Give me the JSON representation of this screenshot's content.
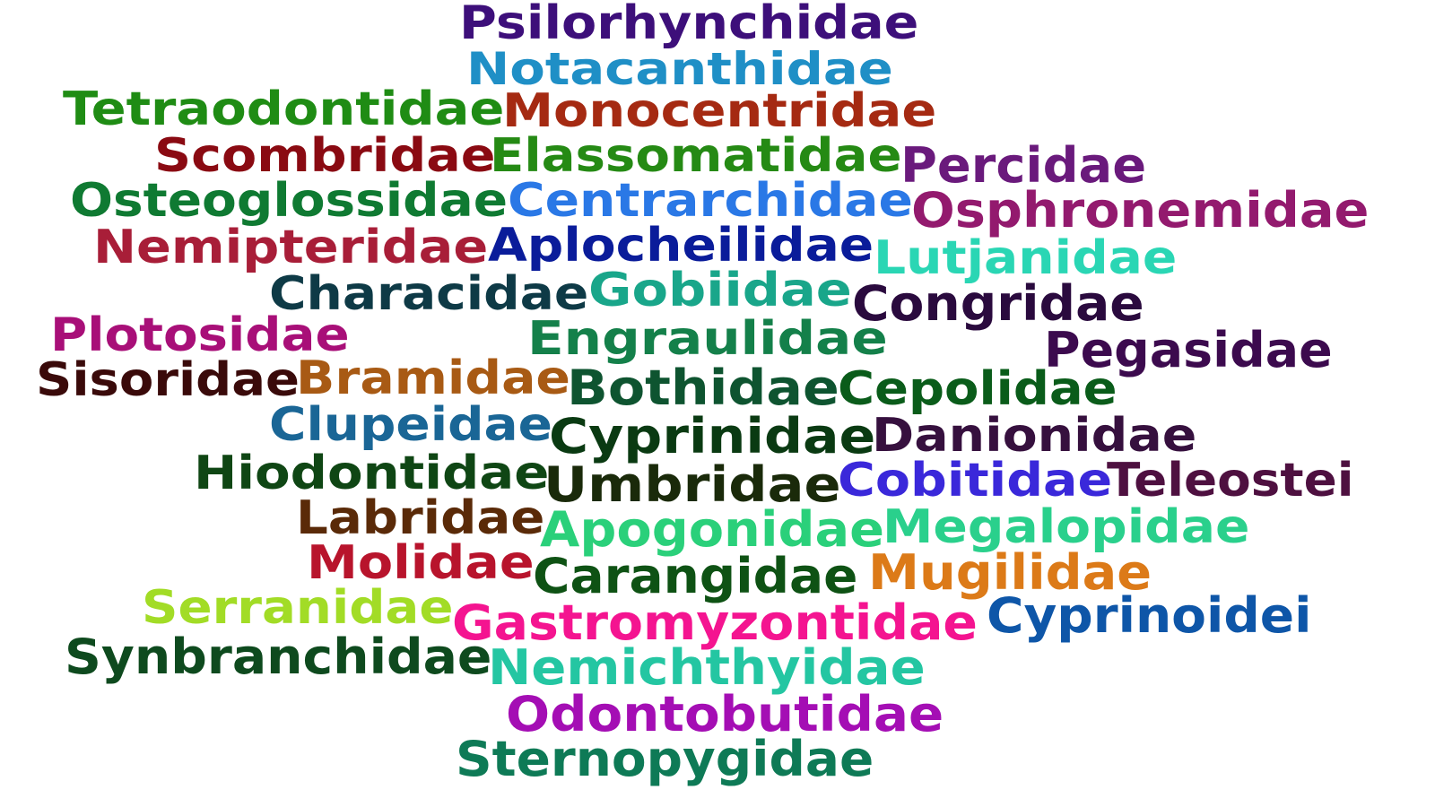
{
  "words": [
    {
      "text": "Psilorhynchidae",
      "color": "#3d0f7a"
    },
    {
      "text": "Notacanthidae",
      "color": "#1f8fc6"
    },
    {
      "text": "Tetraodontidae",
      "color": "#1f8c14"
    },
    {
      "text": "Monocentridae",
      "color": "#a52a12"
    },
    {
      "text": "Scombridae",
      "color": "#8a0a12"
    },
    {
      "text": "Elassomatidae",
      "color": "#258a14"
    },
    {
      "text": "Percidae",
      "color": "#6a1a7c"
    },
    {
      "text": "Osteoglossidae",
      "color": "#0f7a32"
    },
    {
      "text": "Centrarchidae",
      "color": "#2a78e6"
    },
    {
      "text": "Osphronemidae",
      "color": "#931a6e"
    },
    {
      "text": "Nemipteridae",
      "color": "#a81e38"
    },
    {
      "text": "Aplocheilidae",
      "color": "#0a1c9a"
    },
    {
      "text": "Lutjanidae",
      "color": "#2ad6b4"
    },
    {
      "text": "Characidae",
      "color": "#0e3a46"
    },
    {
      "text": "Gobiidae",
      "color": "#19a68a"
    },
    {
      "text": "Congridae",
      "color": "#2a0a3e"
    },
    {
      "text": "Plotosidae",
      "color": "#a80f78"
    },
    {
      "text": "Engraulidae",
      "color": "#14804a"
    },
    {
      "text": "Pegasidae",
      "color": "#3c0a4e"
    },
    {
      "text": "Sisoridae",
      "color": "#3a0a0a"
    },
    {
      "text": "Bramidae",
      "color": "#a85a14"
    },
    {
      "text": "Bothidae",
      "color": "#0e5430"
    },
    {
      "text": "Cepolidae",
      "color": "#0a5c1a"
    },
    {
      "text": "Clupeidae",
      "color": "#1a6696"
    },
    {
      "text": "Cyprinidae",
      "color": "#0a3a12"
    },
    {
      "text": "Danionidae",
      "color": "#36103e"
    },
    {
      "text": "Hiodontidae",
      "color": "#0f4614"
    },
    {
      "text": "Umbridae",
      "color": "#1a2a0a"
    },
    {
      "text": "Cobitidae",
      "color": "#3a28da"
    },
    {
      "text": "Teleostei",
      "color": "#4e1040"
    },
    {
      "text": "Labridae",
      "color": "#5a2a08"
    },
    {
      "text": "Apogonidae",
      "color": "#2ad07a"
    },
    {
      "text": "Megalopidae",
      "color": "#2ad08c"
    },
    {
      "text": "Molidae",
      "color": "#b8142c"
    },
    {
      "text": "Carangidae",
      "color": "#0e5214"
    },
    {
      "text": "Mugilidae",
      "color": "#dc7a18"
    },
    {
      "text": "Serranidae",
      "color": "#a2dc26"
    },
    {
      "text": "Gastromyzontidae",
      "color": "#f41490"
    },
    {
      "text": "Cyprinoidei",
      "color": "#0e56a8"
    },
    {
      "text": "Synbranchidae",
      "color": "#0e4a1e"
    },
    {
      "text": "Nemichthyidae",
      "color": "#24c6a2"
    },
    {
      "text": "Odontobutidae",
      "color": "#a40eb4"
    },
    {
      "text": "Sternopygidae",
      "color": "#0e7a56"
    }
  ]
}
